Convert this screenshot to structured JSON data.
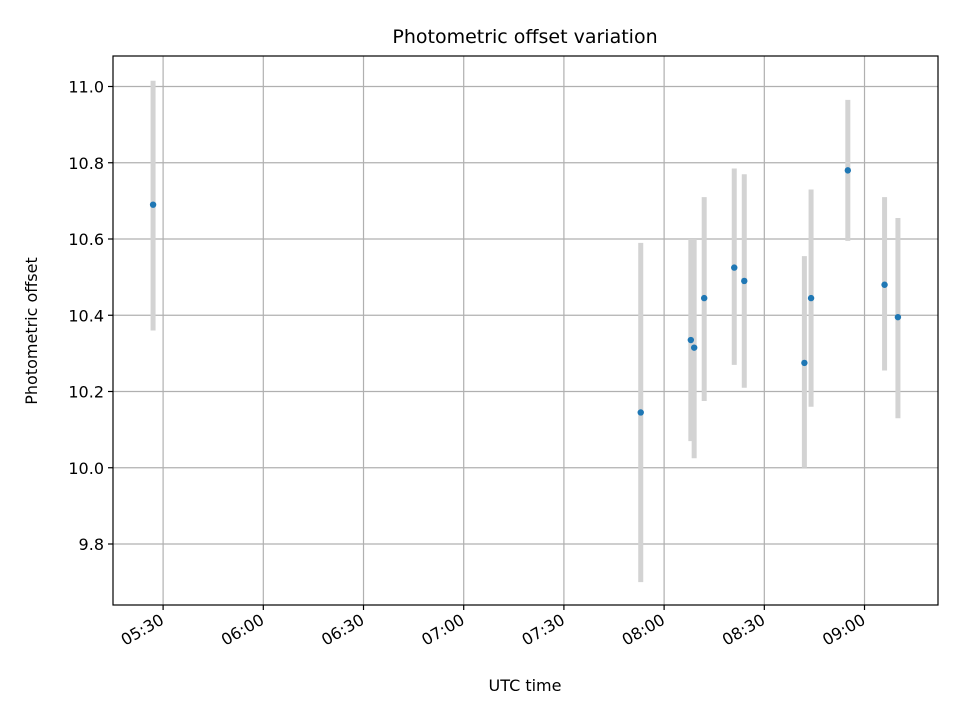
{
  "chart_data": {
    "type": "scatter",
    "title": "Photometric offset variation",
    "xlabel": "UTC time",
    "ylabel": "Photometric offset",
    "x_axis_type": "time",
    "xlim": [
      "05:15",
      "09:22"
    ],
    "ylim": [
      9.64,
      11.08
    ],
    "x_ticks": [
      "05:30",
      "06:00",
      "06:30",
      "07:00",
      "07:30",
      "08:00",
      "08:30",
      "09:00"
    ],
    "y_ticks": [
      9.8,
      10.0,
      10.2,
      10.4,
      10.6,
      10.8,
      11.0
    ],
    "grid": true,
    "errorbar_color": "#d3d3d3",
    "point_color": "#1f77b4",
    "series": [
      {
        "x": [
          "05:27",
          "07:53",
          "08:08",
          "08:09",
          "08:12",
          "08:21",
          "08:24",
          "08:42",
          "08:44",
          "08:55",
          "09:06",
          "09:10"
        ],
        "y": [
          10.69,
          10.145,
          10.335,
          10.315,
          10.445,
          10.525,
          10.49,
          10.275,
          10.445,
          10.78,
          10.48,
          10.395
        ],
        "yerr_low": [
          10.36,
          9.7,
          10.07,
          10.025,
          10.175,
          10.27,
          10.21,
          10.0,
          10.16,
          10.595,
          10.255,
          10.13
        ],
        "yerr_high": [
          11.015,
          10.59,
          10.6,
          10.6,
          10.71,
          10.785,
          10.77,
          10.555,
          10.73,
          10.965,
          10.71,
          10.655
        ]
      }
    ]
  }
}
